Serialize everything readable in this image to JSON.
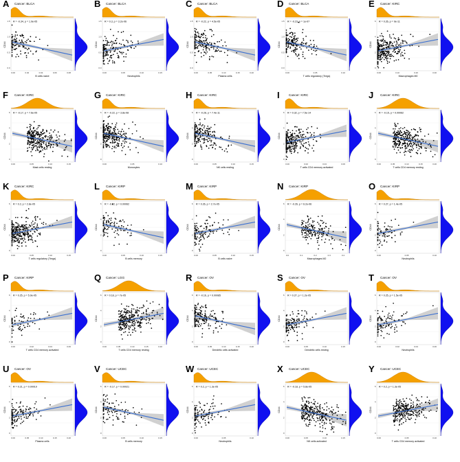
{
  "figure": {
    "layout": "5x5 grid of scatter plots with marginal density plots",
    "colors": {
      "top_density": "#f5a000",
      "right_density": "#1010f0",
      "regression_line": "#3a6fd0",
      "confidence_band": "#c8c8c8",
      "points": "#000000"
    }
  },
  "chart_data": [
    {
      "panel": "A",
      "title": "Cancer: BLCA",
      "type": "scatter",
      "xlabel": "B cells naive",
      "ylabel": "CD44",
      "stat": "R = -0.34, p = 1.9e-05",
      "xticks": [
        "0.00",
        "0.02",
        "0.04",
        "0.06",
        "0.08"
      ],
      "yticks": [
        "1.5",
        "1.0",
        "0.5",
        "0.0"
      ],
      "xlim": [
        0,
        0.1
      ],
      "ylim": [
        0,
        1.6
      ],
      "n_points": 110,
      "slope_sign": -1,
      "marginal_top": "peak-left",
      "marginal_right": "peak-mid"
    },
    {
      "panel": "B",
      "title": "Cancer: BLCA",
      "type": "scatter",
      "xlabel": "Neutrophils",
      "ylabel": "CD44",
      "stat": "R = 0.3, p = 3.2e-06",
      "xticks": [
        "0.00",
        "0.05",
        "0.10",
        "0.15"
      ],
      "yticks": [
        "1.5",
        "1.0",
        "0.5",
        "0.0"
      ],
      "xlim": [
        0,
        0.16
      ],
      "ylim": [
        0,
        1.6
      ],
      "n_points": 170,
      "slope_sign": 1,
      "marginal_top": "peak-left",
      "marginal_right": "peak-mid"
    },
    {
      "panel": "C",
      "title": "Cancer: BLCA",
      "type": "scatter",
      "xlabel": "Plasma cells",
      "ylabel": "CD44",
      "stat": "R = -0.22, p = 4.5e-05",
      "xticks": [
        "0.00",
        "0.05",
        "0.10",
        "0.15",
        "0.20"
      ],
      "yticks": [
        "1.5",
        "1.0",
        "0.5",
        "0.0"
      ],
      "xlim": [
        0,
        0.22
      ],
      "ylim": [
        0,
        1.6
      ],
      "n_points": 170,
      "slope_sign": -1,
      "marginal_top": "peak-left",
      "marginal_right": "peak-mid"
    },
    {
      "panel": "D",
      "title": "Cancer: BLCA",
      "type": "scatter",
      "xlabel": "T cells regulatory (Tregs)",
      "ylabel": "CD44",
      "stat": "R = -0.23, p = 1e-07",
      "xticks": [
        "0.00",
        "0.05",
        "0.10"
      ],
      "yticks": [
        "1.5",
        "1.0",
        "0.5",
        "0.0"
      ],
      "xlim": [
        0,
        0.12
      ],
      "ylim": [
        0,
        1.6
      ],
      "n_points": 170,
      "slope_sign": -1,
      "marginal_top": "peak-left",
      "marginal_right": "peak-mid"
    },
    {
      "panel": "E",
      "title": "Cancer: KIRC",
      "type": "scatter",
      "xlabel": "Macrophages M0",
      "ylabel": "CD44",
      "stat": "R = 0.26, p = 9e-11",
      "xticks": [
        "0.00",
        "0.10",
        "0.20",
        "0.30"
      ],
      "yticks": [
        "6",
        "4",
        "2",
        "0"
      ],
      "xlim": [
        0,
        0.35
      ],
      "ylim": [
        0,
        7
      ],
      "n_points": 300,
      "slope_sign": 1,
      "marginal_top": "peak-left",
      "marginal_right": "peak-mid"
    },
    {
      "panel": "F",
      "title": "Cancer: KIRC",
      "type": "scatter",
      "xlabel": "Mast cells resting",
      "ylabel": "CD44",
      "stat": "R = -0.17, p = 7.6e-05",
      "xticks": [
        "0.00",
        "0.05",
        "0.10",
        "0.15"
      ],
      "yticks": [
        "6",
        "4",
        "2",
        "0"
      ],
      "xlim": [
        0,
        0.18
      ],
      "ylim": [
        0,
        7
      ],
      "n_points": 300,
      "slope_sign": -1,
      "marginal_top": "peak-mid",
      "marginal_right": "peak-mid"
    },
    {
      "panel": "G",
      "title": "Cancer: KIRC",
      "type": "scatter",
      "xlabel": "Monocytes",
      "ylabel": "CD44",
      "stat": "R = -0.22, p = 3.8e-08",
      "xticks": [
        "0.00",
        "0.05",
        "0.10"
      ],
      "yticks": [
        "6",
        "4",
        "2",
        "0"
      ],
      "xlim": [
        0,
        0.12
      ],
      "ylim": [
        0,
        7
      ],
      "n_points": 300,
      "slope_sign": -1,
      "marginal_top": "peak-left",
      "marginal_right": "peak-mid"
    },
    {
      "panel": "H",
      "title": "Cancer: KIRC",
      "type": "scatter",
      "xlabel": "NK cells resting",
      "ylabel": "CD44",
      "stat": "R = -0.28, p = 7.4e-11",
      "xticks": [
        "0.00",
        "0.05",
        "0.10",
        "0.15"
      ],
      "yticks": [
        "6",
        "4",
        "2",
        "0"
      ],
      "xlim": [
        0,
        0.16
      ],
      "ylim": [
        0,
        7
      ],
      "n_points": 200,
      "slope_sign": -1,
      "marginal_top": "peak-left",
      "marginal_right": "peak-mid"
    },
    {
      "panel": "I",
      "title": "Cancer: KIRC",
      "type": "scatter",
      "xlabel": "T cells CD4 memory activated",
      "ylabel": "CD44",
      "stat": "R = 0.32, p = 7.5e-14",
      "xticks": [
        "0.00",
        "0.02",
        "0.04",
        "0.06"
      ],
      "yticks": [
        "6",
        "4",
        "2",
        "0"
      ],
      "xlim": [
        0,
        0.07
      ],
      "ylim": [
        0,
        7
      ],
      "n_points": 260,
      "slope_sign": 1,
      "marginal_top": "peak-left",
      "marginal_right": "peak-mid"
    },
    {
      "panel": "J",
      "title": "Cancer: KIRC",
      "type": "scatter",
      "xlabel": "T cells CD4 memory resting",
      "ylabel": "CD44",
      "stat": "R = -0.15, p = 0.00062",
      "xticks": [
        "0.00",
        "0.05",
        "0.10",
        "0.15",
        "0.20"
      ],
      "yticks": [
        "6",
        "4",
        "2",
        "0"
      ],
      "xlim": [
        0,
        0.22
      ],
      "ylim": [
        0,
        7
      ],
      "n_points": 300,
      "slope_sign": -1,
      "marginal_top": "peak-mid",
      "marginal_right": "peak-mid"
    },
    {
      "panel": "K",
      "title": "Cancer: KIRC",
      "type": "scatter",
      "xlabel": "T cells regulatory (Tregs)",
      "ylabel": "CD44",
      "stat": "R = 0.2, p = 2.8e-05",
      "xticks": [
        "0.00",
        "0.05",
        "0.10",
        "0.15"
      ],
      "yticks": [
        "6",
        "4",
        "2",
        "0"
      ],
      "xlim": [
        0,
        0.16
      ],
      "ylim": [
        0,
        7
      ],
      "n_points": 300,
      "slope_sign": 1,
      "marginal_top": "peak-left",
      "marginal_right": "peak-mid"
    },
    {
      "panel": "L",
      "title": "Cancer: KIRP",
      "type": "scatter",
      "xlabel": "B cells memory",
      "ylabel": "CD44",
      "stat": "R = -0.22, p = 0.00062",
      "xticks": [
        "0.00",
        "0.05",
        "0.10",
        "0.15"
      ],
      "yticks": [
        "6",
        "4",
        "2",
        "0"
      ],
      "xlim": [
        0,
        0.16
      ],
      "ylim": [
        0,
        7
      ],
      "n_points": 100,
      "slope_sign": -1,
      "marginal_top": "peak-left",
      "marginal_right": "peak-mid"
    },
    {
      "panel": "M",
      "title": "Cancer: KIRP",
      "type": "scatter",
      "xlabel": "B cells naive",
      "ylabel": "CD44",
      "stat": "R = 0.26, p = 2.7e-05",
      "xticks": [
        "0.00",
        "0.05",
        "0.10",
        "0.15"
      ],
      "yticks": [
        "6",
        "4",
        "2",
        "0"
      ],
      "xlim": [
        0,
        0.16
      ],
      "ylim": [
        0,
        7
      ],
      "n_points": 120,
      "slope_sign": 1,
      "marginal_top": "peak-left",
      "marginal_right": "peak-mid"
    },
    {
      "panel": "N",
      "title": "Cancer: KIRP",
      "type": "scatter",
      "xlabel": "Macrophages M2",
      "ylabel": "CD44",
      "stat": "R = -0.26, p = 6.2e-06",
      "xticks": [
        "0.0",
        "0.1",
        "0.2",
        "0.3",
        "0.4"
      ],
      "yticks": [
        "6",
        "4",
        "2",
        "0"
      ],
      "xlim": [
        0,
        0.45
      ],
      "ylim": [
        0,
        7
      ],
      "n_points": 180,
      "slope_sign": -1,
      "marginal_top": "peak-mid",
      "marginal_right": "peak-mid"
    },
    {
      "panel": "O",
      "title": "Cancer: KIRP",
      "type": "scatter",
      "xlabel": "Neutrophils",
      "ylabel": "CD44",
      "stat": "R = 0.27, p = 1.4e-05",
      "xticks": [
        "0.00",
        "0.05",
        "0.10"
      ],
      "yticks": [
        "6",
        "4",
        "2",
        "0"
      ],
      "xlim": [
        0,
        0.12
      ],
      "ylim": [
        0,
        7
      ],
      "n_points": 80,
      "slope_sign": 1,
      "marginal_top": "peak-left",
      "marginal_right": "peak-mid"
    },
    {
      "panel": "P",
      "title": "Cancer: KIRP",
      "type": "scatter",
      "xlabel": "T cells CD4 memory activated",
      "ylabel": "CD44",
      "stat": "R = 0.25, p = 5.9e-05",
      "xticks": [
        "0.00",
        "0.02",
        "0.04",
        "0.06"
      ],
      "yticks": [
        "6",
        "4",
        "2",
        "0"
      ],
      "xlim": [
        0,
        0.07
      ],
      "ylim": [
        0,
        7
      ],
      "n_points": 70,
      "slope_sign": 1,
      "marginal_top": "peak-left",
      "marginal_right": "peak-mid"
    },
    {
      "panel": "Q",
      "title": "Cancer: LGG",
      "type": "scatter",
      "xlabel": "T cells CD4 memory resting",
      "ylabel": "CD44",
      "stat": "R = 0.18, p = 7e-05",
      "xticks": [
        "0.00",
        "0.05",
        "0.10",
        "0.15",
        "0.20"
      ],
      "yticks": [
        "6",
        "4",
        "2",
        "0"
      ],
      "xlim": [
        0,
        0.22
      ],
      "ylim": [
        0,
        7
      ],
      "n_points": 300,
      "slope_sign": 1,
      "marginal_top": "peak-mid",
      "marginal_right": "peak-mid"
    },
    {
      "panel": "R",
      "title": "Cancer: OV",
      "type": "scatter",
      "xlabel": "Dendritic cells activated",
      "ylabel": "CD44",
      "stat": "R = -0.16, p = 0.00085",
      "xticks": [
        "0.00",
        "0.05",
        "0.10",
        "0.15",
        "0.20"
      ],
      "yticks": [
        "6",
        "4",
        "2",
        "0"
      ],
      "xlim": [
        0,
        0.22
      ],
      "ylim": [
        0,
        7
      ],
      "n_points": 180,
      "slope_sign": -1,
      "marginal_top": "peak-left",
      "marginal_right": "peak-mid"
    },
    {
      "panel": "S",
      "title": "Cancer: OV",
      "type": "scatter",
      "xlabel": "Dendritic cells resting",
      "ylabel": "CD44",
      "stat": "R = 0.27, p = 1.2e-05",
      "xticks": [
        "0.00",
        "0.05",
        "0.10",
        "0.15"
      ],
      "yticks": [
        "6",
        "4",
        "2",
        "0"
      ],
      "xlim": [
        0,
        0.16
      ],
      "ylim": [
        0,
        7
      ],
      "n_points": 130,
      "slope_sign": 1,
      "marginal_top": "peak-left",
      "marginal_right": "peak-mid"
    },
    {
      "panel": "T",
      "title": "Cancer: OV",
      "type": "scatter",
      "xlabel": "Neutrophils",
      "ylabel": "CD44",
      "stat": "R = 0.25, p = 1.5e-05",
      "xticks": [
        "0.00",
        "0.02",
        "0.04",
        "0.06"
      ],
      "yticks": [
        "6",
        "4",
        "2",
        "0"
      ],
      "xlim": [
        0,
        0.07
      ],
      "ylim": [
        0,
        7
      ],
      "n_points": 100,
      "slope_sign": 1,
      "marginal_top": "peak-left",
      "marginal_right": "peak-mid"
    },
    {
      "panel": "U",
      "title": "Cancer: OV",
      "type": "scatter",
      "xlabel": "Plasma cells",
      "ylabel": "CD44",
      "stat": "R = 0.21, p = 0.00019",
      "xticks": [
        "0.00",
        "0.05",
        "0.10",
        "0.15",
        "0.20"
      ],
      "yticks": [
        "6",
        "4",
        "2",
        "0"
      ],
      "xlim": [
        0,
        0.22
      ],
      "ylim": [
        0,
        7
      ],
      "n_points": 130,
      "slope_sign": 1,
      "marginal_top": "peak-left",
      "marginal_right": "peak-mid"
    },
    {
      "panel": "V",
      "title": "Cancer: UCEC",
      "type": "scatter",
      "xlabel": "B cells memory",
      "ylabel": "CD44",
      "stat": "R = -0.17, p = 0.00021",
      "xticks": [
        "0.00",
        "0.05",
        "0.10",
        "0.15"
      ],
      "yticks": [
        "6",
        "4",
        "2",
        "0"
      ],
      "xlim": [
        0,
        0.16
      ],
      "ylim": [
        0,
        7
      ],
      "n_points": 100,
      "slope_sign": -1,
      "marginal_top": "peak-left",
      "marginal_right": "peak-mid"
    },
    {
      "panel": "W",
      "title": "Cancer: UCEC",
      "type": "scatter",
      "xlabel": "Neutrophils",
      "ylabel": "CD44",
      "stat": "R = 0.2, p = 1.3e-05",
      "xticks": [
        "0.00",
        "0.05",
        "0.10"
      ],
      "yticks": [
        "6",
        "4",
        "2",
        "0"
      ],
      "xlim": [
        0,
        0.12
      ],
      "ylim": [
        0,
        7
      ],
      "n_points": 120,
      "slope_sign": 1,
      "marginal_top": "peak-left",
      "marginal_right": "peak-mid"
    },
    {
      "panel": "X",
      "title": "Cancer: UCEC",
      "type": "scatter",
      "xlabel": "NK cells activated",
      "ylabel": "CD44",
      "stat": "R = -0.18, p = 5.8e-05",
      "xticks": [
        "0.00",
        "0.05",
        "0.10",
        "0.15"
      ],
      "yticks": [
        "6",
        "4",
        "2",
        "0"
      ],
      "xlim": [
        0,
        0.16
      ],
      "ylim": [
        0,
        7
      ],
      "n_points": 280,
      "slope_sign": -1,
      "marginal_top": "peak-mid",
      "marginal_right": "peak-mid"
    },
    {
      "panel": "Y",
      "title": "Cancer: UCEC",
      "type": "scatter",
      "xlabel": "T cells CD4 memory activated",
      "ylabel": "CD44",
      "stat": "R = 0.2, p = 1.3e-05",
      "xticks": [
        "0.00",
        "0.05",
        "0.10"
      ],
      "yticks": [
        "6",
        "4",
        "2",
        "0"
      ],
      "xlim": [
        0,
        0.12
      ],
      "ylim": [
        0,
        7
      ],
      "n_points": 280,
      "slope_sign": 1,
      "marginal_top": "peak-mid",
      "marginal_right": "peak-mid"
    }
  ]
}
